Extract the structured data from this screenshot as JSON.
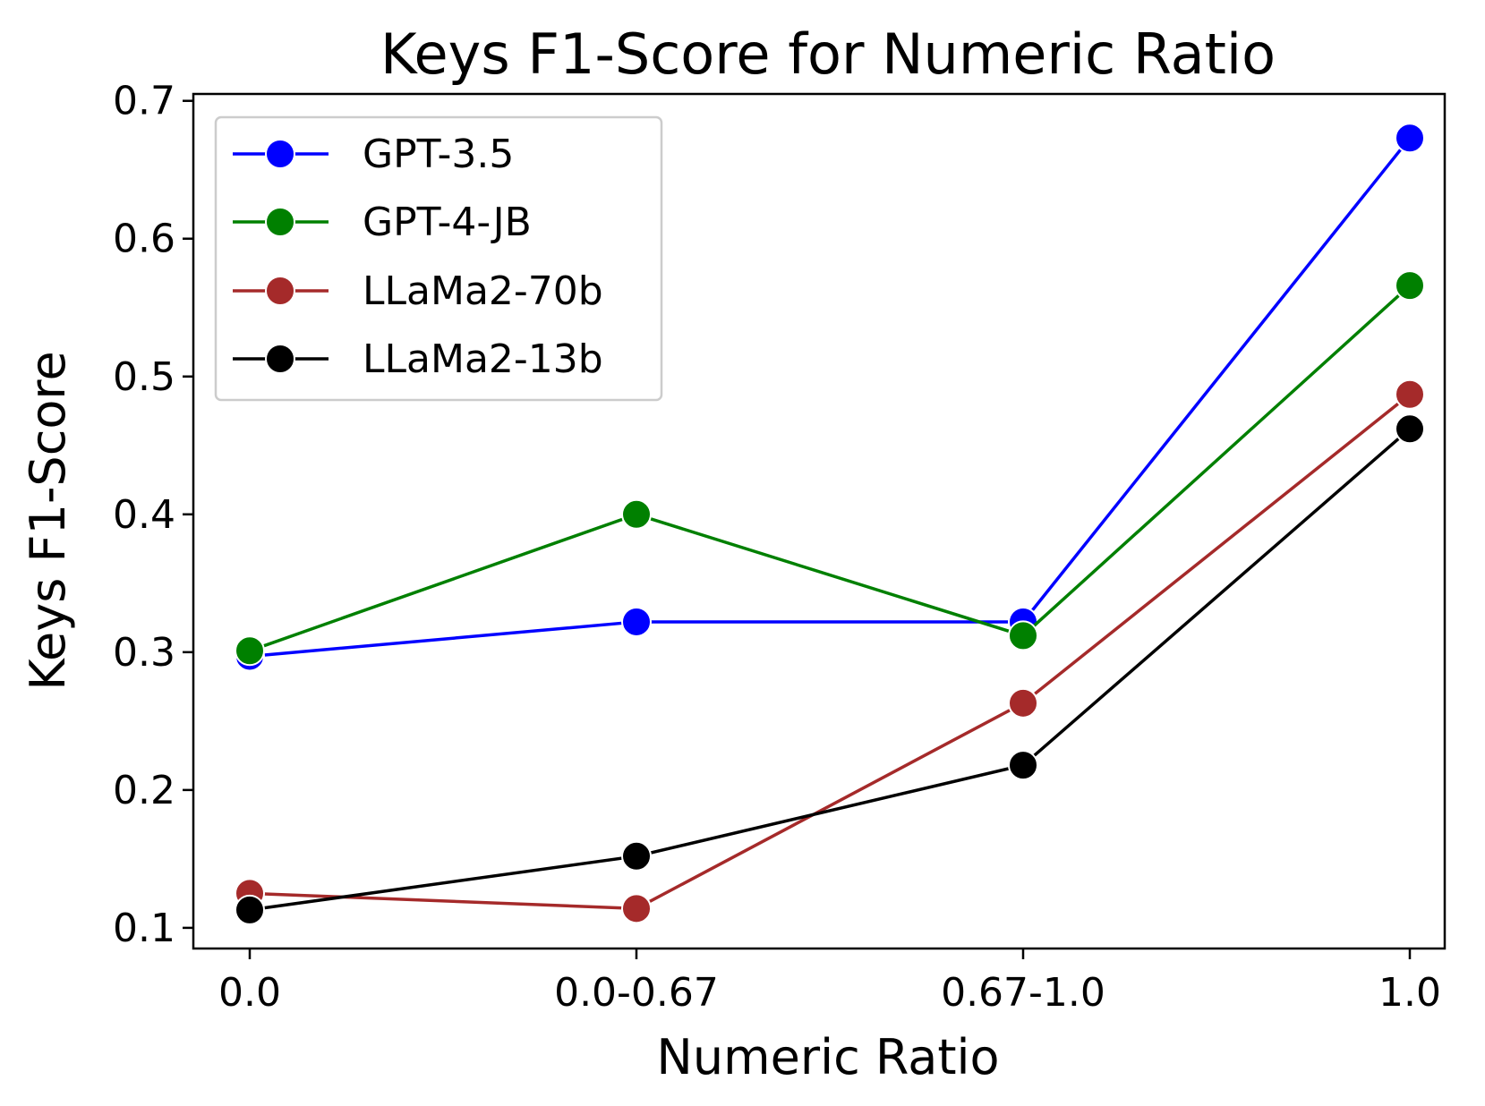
{
  "chart_data": {
    "type": "line",
    "title": "Keys F1-Score for Numeric Ratio",
    "xlabel": "Numeric Ratio",
    "ylabel": "Keys F1-Score",
    "categories": [
      "0.0",
      "0.0-0.67",
      "0.67-1.0",
      "1.0"
    ],
    "ylim": [
      0.085,
      0.705
    ],
    "yticks": [
      "0.1",
      "0.2",
      "0.3",
      "0.4",
      "0.5",
      "0.6",
      "0.7"
    ],
    "yticks_values": [
      0.1,
      0.2,
      0.3,
      0.4,
      0.5,
      0.6,
      0.7
    ],
    "grid": false,
    "legend_position": "top-left",
    "series": [
      {
        "name": "GPT-3.5",
        "color": "#0000ff",
        "values": [
          0.297,
          0.322,
          0.322,
          0.673
        ]
      },
      {
        "name": "GPT-4-JB",
        "color": "#008000",
        "values": [
          0.301,
          0.4,
          0.312,
          0.566
        ]
      },
      {
        "name": "LLaMa2-70b",
        "color": "#a52a2a",
        "values": [
          0.125,
          0.114,
          0.263,
          0.487
        ]
      },
      {
        "name": "LLaMa2-13b",
        "color": "#000000",
        "values": [
          0.113,
          0.152,
          0.218,
          0.462
        ]
      }
    ]
  }
}
